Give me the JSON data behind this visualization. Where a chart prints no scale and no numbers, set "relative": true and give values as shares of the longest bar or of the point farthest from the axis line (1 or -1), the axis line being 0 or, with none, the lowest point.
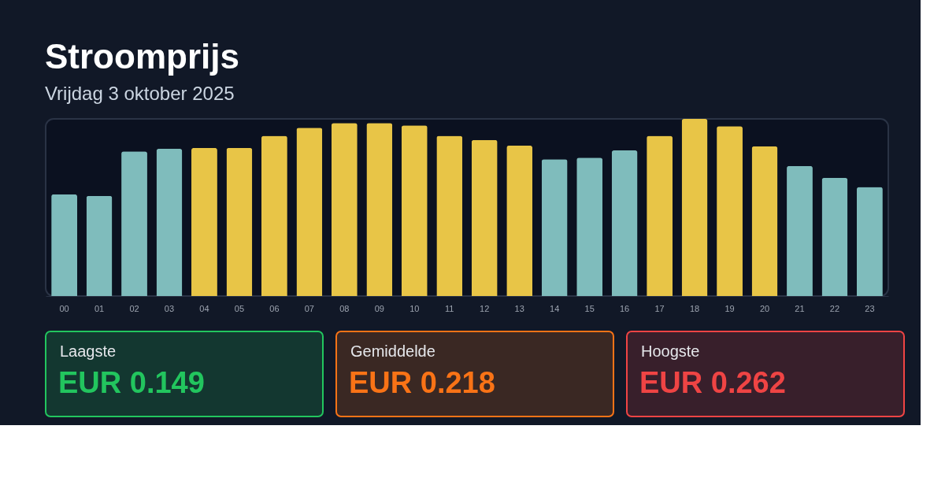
{
  "chart_data": [
    {
      "type": "bar",
      "title": "Stroomprijs",
      "subtitle": "Vrijdag 3 oktober 2025",
      "relative": true,
      "grid": false,
      "categories": [
        "00",
        "01",
        "02",
        "03",
        "04",
        "05",
        "06",
        "07",
        "08",
        "09",
        "10",
        "11",
        "12",
        "13",
        "14",
        "15",
        "16",
        "17",
        "18",
        "19",
        "20",
        "21",
        "22",
        "23"
      ],
      "values": [
        0.575,
        0.566,
        0.817,
        0.831,
        0.836,
        0.836,
        0.904,
        0.95,
        0.977,
        0.977,
        0.963,
        0.904,
        0.881,
        0.849,
        0.772,
        0.781,
        0.822,
        0.904,
        1,
        0.959,
        0.845,
        0.735,
        0.667,
        0.616
      ],
      "colors": [
        "#7fbcbc",
        "#7fbcbc",
        "#7fbcbc",
        "#7fbcbc",
        "#e8c547",
        "#e8c547",
        "#e8c547",
        "#e8c547",
        "#e8c547",
        "#e8c547",
        "#e8c547",
        "#e8c547",
        "#e8c547",
        "#e8c547",
        "#7fbcbc",
        "#7fbcbc",
        "#7fbcbc",
        "#e8c547",
        "#e8c547",
        "#e8c547",
        "#e8c547",
        "#7fbcbc",
        "#7fbcbc",
        "#7fbcbc"
      ]
    },
    {
      "type": "other",
      "title": "Laagste",
      "annotations": [
        "EUR 0.149"
      ],
      "color": "#22c55e"
    },
    {
      "type": "other",
      "title": "Gemiddelde",
      "annotations": [
        "EUR 0.218"
      ],
      "color": "#f97316"
    },
    {
      "type": "other",
      "title": "Hoogste",
      "annotations": [
        "EUR 0.262"
      ],
      "color": "#ef4444"
    }
  ]
}
